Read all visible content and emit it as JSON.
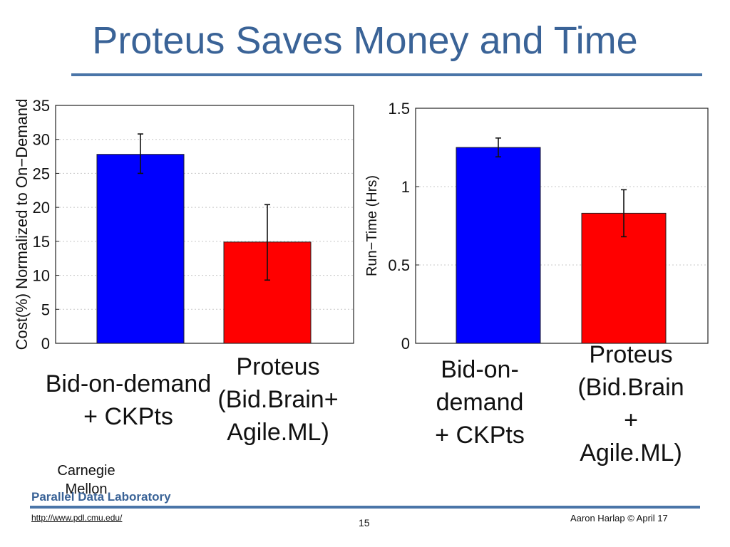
{
  "slide": {
    "title": "Proteus Saves Money and Time",
    "org_line1": "Carnegie",
    "org_line2": "Mellon",
    "lab": "Parallel Data Laboratory",
    "url": "http://www.pdl.cmu.edu/",
    "page_number": "15",
    "author": "Aaron Harlap © April 17"
  },
  "chart_data": [
    {
      "type": "bar",
      "categories": [
        "Bid-on-demand\n+ CKPts",
        "Proteus\n(Bid.Brain+\nAgile.ML)"
      ],
      "values": [
        27.8,
        14.9
      ],
      "errors": [
        [
          25.0,
          30.8
        ],
        [
          9.3,
          20.4
        ]
      ],
      "colors": [
        "#0000ff",
        "#ff0000"
      ],
      "ylabel": "Cost(%) Normalized to On−Demand",
      "xlabel": "",
      "ylim": [
        0,
        35
      ],
      "yticks": [
        0,
        5,
        10,
        15,
        20,
        25,
        30,
        35
      ],
      "ytick_labels": [
        "0",
        "5",
        "10",
        "15",
        "20",
        "25",
        "30",
        "35"
      ],
      "grid": true
    },
    {
      "type": "bar",
      "categories": [
        "Bid-on-\ndemand\n+ CKPts",
        "Proteus\n(Bid.Brain\n+\nAgile.ML)"
      ],
      "values": [
        1.25,
        0.83
      ],
      "errors": [
        [
          1.19,
          1.31
        ],
        [
          0.68,
          0.98
        ]
      ],
      "colors": [
        "#0000ff",
        "#ff0000"
      ],
      "ylabel": "Run−Time (Hrs)",
      "xlabel": "",
      "ylim": [
        0,
        1.5
      ],
      "yticks": [
        0,
        0.5,
        1,
        1.5
      ],
      "ytick_labels": [
        "0",
        "0.5",
        "1",
        "1.5"
      ],
      "grid": true
    }
  ]
}
